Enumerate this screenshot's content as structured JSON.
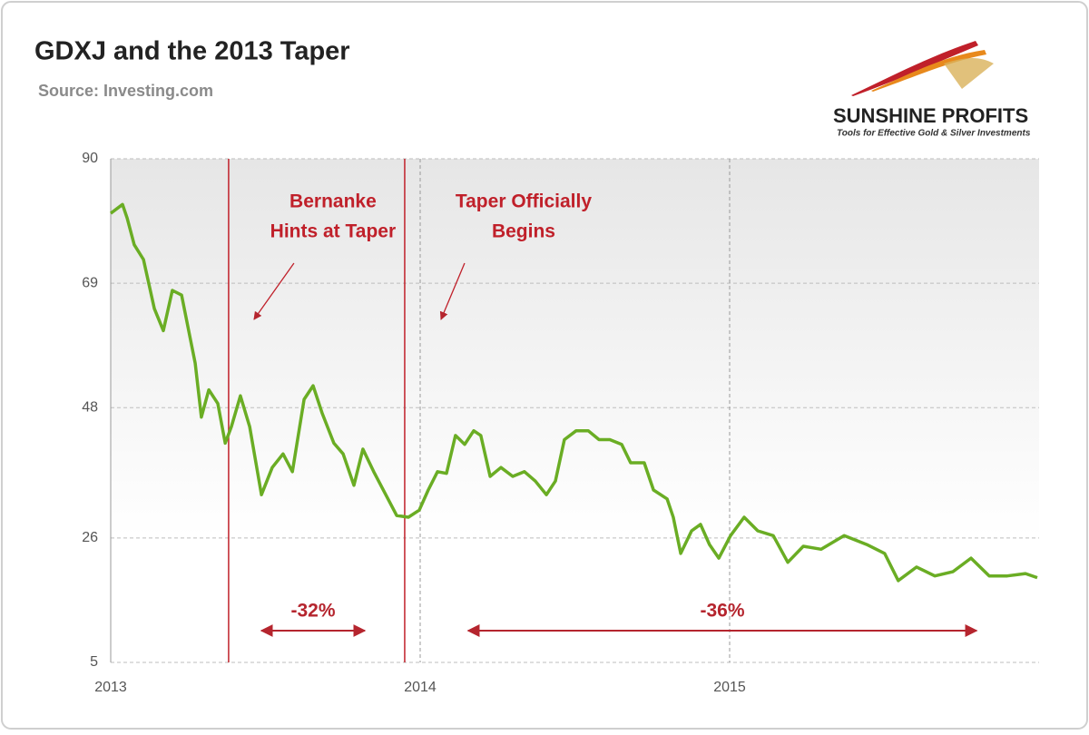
{
  "chart_data": {
    "type": "line",
    "title": "GDXJ and the 2013 Taper",
    "subtitle": "Source: Investing.com",
    "brand": {
      "name": "SUNSHINE PROFITS",
      "tagline": "Tools for Effective Gold & Silver Investments"
    },
    "xlim": [
      2013,
      2016
    ],
    "xticks": [
      2013,
      2014,
      2015
    ],
    "ylim": [
      5,
      90
    ],
    "yticks": [
      5,
      26,
      48,
      69,
      90
    ],
    "grid": true,
    "series": [
      {
        "name": "GDXJ",
        "color": "#6aad24",
        "x": [
          2013.0,
          2013.038,
          2013.053,
          2013.076,
          2013.106,
          2013.141,
          2013.17,
          2013.199,
          2013.229,
          2013.258,
          2013.273,
          2013.293,
          2013.317,
          2013.346,
          2013.37,
          2013.39,
          2013.419,
          2013.449,
          2013.487,
          2013.522,
          2013.557,
          2013.587,
          2013.625,
          2013.654,
          2013.683,
          2013.721,
          2013.751,
          2013.786,
          2013.815,
          2013.85,
          2013.889,
          2013.924,
          2013.962,
          2013.997,
          2014.026,
          2014.056,
          2014.085,
          2014.114,
          2014.144,
          2014.173,
          2014.196,
          2014.226,
          2014.261,
          2014.299,
          2014.337,
          2014.372,
          2014.408,
          2014.437,
          2014.466,
          2014.504,
          2014.543,
          2014.578,
          2014.613,
          2014.651,
          2014.68,
          2014.724,
          2014.754,
          2014.798,
          2014.818,
          2014.842,
          2014.877,
          2014.906,
          2014.935,
          2014.965,
          2015.003,
          2015.047,
          2015.091,
          2015.141,
          2015.188,
          2015.238,
          2015.296,
          2015.37,
          2015.443,
          2015.501,
          2015.545,
          2015.604,
          2015.663,
          2015.721,
          2015.78,
          2015.839,
          2015.897,
          2015.956,
          2015.994
        ],
        "values": [
          80.8,
          82.3,
          80,
          75.5,
          73,
          64.7,
          61,
          67.8,
          67,
          59.4,
          55.5,
          46.4,
          51,
          48.7,
          42,
          44.8,
          50,
          44.8,
          33.3,
          37.9,
          40.2,
          37.2,
          49.4,
          51.7,
          47.1,
          42,
          40.2,
          34.9,
          41,
          37.2,
          33.3,
          29.8,
          29.5,
          30.7,
          34.1,
          37.2,
          36.9,
          43.3,
          41.8,
          44.1,
          43.3,
          36.4,
          37.9,
          36.4,
          37.2,
          35.6,
          33.3,
          35.6,
          42.6,
          44.1,
          44.1,
          42.6,
          42.6,
          41.8,
          38.7,
          38.7,
          34.1,
          32.6,
          29.5,
          23.4,
          27.2,
          28.3,
          24.9,
          22.6,
          26.4,
          29.5,
          27.2,
          26.4,
          21.9,
          24.6,
          24.1,
          26.4,
          24.9,
          23.4,
          18.8,
          21.1,
          19.6,
          20.3,
          22.6,
          19.6,
          19.6,
          20,
          19.3
        ]
      }
    ],
    "events": [
      {
        "x": 2013.381,
        "text": [
          "Bernanke",
          "Hints at Taper"
        ],
        "color": "#c0202a"
      },
      {
        "x": 2013.95,
        "text": [
          "Taper Officially",
          "Begins"
        ],
        "color": "#c0202a"
      }
    ],
    "spans": [
      {
        "x": [
          2013.487,
          2013.821
        ],
        "text": "-32%",
        "color": "#b5252e"
      },
      {
        "x": [
          2014.155,
          2015.798
        ],
        "text": "-36%",
        "color": "#b5252e"
      }
    ]
  }
}
